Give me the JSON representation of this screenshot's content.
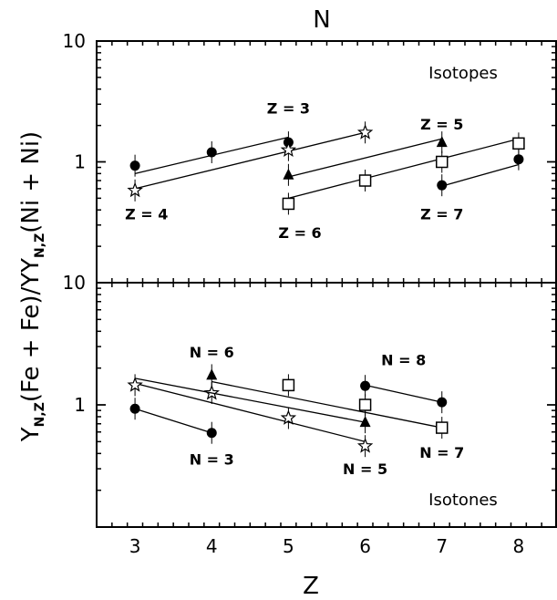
{
  "chart_data": [
    {
      "type": "line",
      "panel": "top",
      "title": "N",
      "panel_label": "Isotopes",
      "xlabel": "Z",
      "ylabel": "Y",
      "ylabel_sub": "N,Z",
      "ylabel_mid": "(Fe + Fe)/Y",
      "ylabel_end": "(Ni + Ni)",
      "xlim": [
        2.5,
        8.5
      ],
      "ylim": [
        0.1,
        10
      ],
      "yscale": "log",
      "xticks": [
        "3",
        "4",
        "5",
        "6",
        "7",
        "8"
      ],
      "ytick_labels": [
        "10",
        "1",
        "10"
      ],
      "series": [
        {
          "name": "Z = 3",
          "marker": "circle",
          "x": [
            3,
            4,
            5
          ],
          "y": [
            0.93,
            1.2,
            1.45
          ],
          "fit": [
            [
              3,
              0.8
            ],
            [
              5,
              1.6
            ]
          ]
        },
        {
          "name": "Z = 4",
          "marker": "star",
          "x": [
            3,
            5,
            6
          ],
          "y": [
            0.58,
            1.25,
            1.75
          ],
          "fit": [
            [
              3,
              0.6
            ],
            [
              6,
              1.75
            ]
          ]
        },
        {
          "name": "Z = 5",
          "marker": "triangle",
          "x": [
            5,
            7
          ],
          "y": [
            0.78,
            1.45
          ],
          "fit": [
            [
              5,
              0.75
            ],
            [
              7,
              1.55
            ]
          ]
        },
        {
          "name": "Z = 6",
          "marker": "square",
          "x": [
            5,
            6,
            7,
            8
          ],
          "y": [
            0.45,
            0.7,
            1.0,
            1.42
          ],
          "fit": [
            [
              5,
              0.5
            ],
            [
              8,
              1.55
            ]
          ]
        },
        {
          "name": "Z = 7",
          "marker": "circle",
          "x": [
            7,
            8
          ],
          "y": [
            0.64,
            1.05
          ],
          "fit": [
            [
              7,
              0.63
            ],
            [
              8,
              0.95
            ]
          ]
        }
      ]
    },
    {
      "type": "line",
      "panel": "bottom",
      "panel_label": "Isotones",
      "xlabel": "Z",
      "xlim": [
        2.5,
        8.5
      ],
      "ylim": [
        0.1,
        10
      ],
      "yscale": "log",
      "xticks": [
        "3",
        "4",
        "5",
        "6",
        "7",
        "8"
      ],
      "ytick_labels": [
        "1"
      ],
      "series": [
        {
          "name": "N = 3",
          "marker": "circle",
          "x": [
            3,
            4
          ],
          "y": [
            0.93,
            0.59
          ],
          "fit": [
            [
              3,
              0.93
            ],
            [
              4,
              0.59
            ]
          ]
        },
        {
          "name": "N = 5",
          "marker": "star",
          "x": [
            3,
            4,
            5,
            6
          ],
          "y": [
            1.45,
            1.25,
            0.78,
            0.46
          ],
          "fit": [
            [
              3,
              1.5
            ],
            [
              6,
              0.5
            ]
          ]
        },
        {
          "name": "N = 6",
          "marker": "triangle",
          "x": [
            4,
            6
          ],
          "y": [
            1.75,
            0.72
          ],
          "fit": [
            [
              3,
              1.65
            ],
            [
              6,
              0.72
            ]
          ]
        },
        {
          "name": "N = 7",
          "marker": "square",
          "x": [
            5,
            6,
            7
          ],
          "y": [
            1.45,
            1.0,
            0.65
          ],
          "fit": [
            [
              4,
              1.55
            ],
            [
              7,
              0.65
            ]
          ]
        },
        {
          "name": "N = 8",
          "marker": "circle",
          "x": [
            6,
            7
          ],
          "y": [
            1.43,
            1.05
          ],
          "fit": [
            [
              6,
              1.45
            ],
            [
              7,
              1.05
            ]
          ]
        }
      ]
    }
  ],
  "label_positions": {
    "top": {
      "Z = 3": {
        "x": 5.0,
        "y": 2.8
      },
      "Z = 4": {
        "x": 3.15,
        "y": 0.37
      },
      "Z = 5": {
        "x": 7.0,
        "y": 2.05
      },
      "Z = 6": {
        "x": 5.15,
        "y": 0.26
      },
      "Z = 7": {
        "x": 7.0,
        "y": 0.37
      }
    },
    "bottom": {
      "N = 3": {
        "x": 4.0,
        "y": 0.36
      },
      "N = 5": {
        "x": 6.0,
        "y": 0.3
      },
      "N = 6": {
        "x": 4.0,
        "y": 2.7
      },
      "N = 7": {
        "x": 7.0,
        "y": 0.41
      },
      "N = 8": {
        "x": 6.5,
        "y": 2.35
      }
    }
  }
}
